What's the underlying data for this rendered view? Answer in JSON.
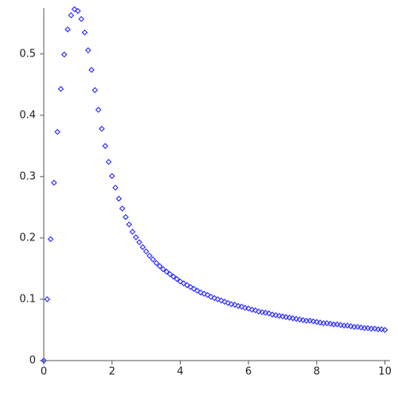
{
  "chart_data": {
    "type": "scatter",
    "x": [
      0,
      0.1,
      0.2,
      0.3,
      0.4,
      0.5,
      0.6,
      0.7,
      0.8,
      0.9,
      1,
      1.1,
      1.2,
      1.3,
      1.4,
      1.5,
      1.6,
      1.7,
      1.8,
      1.9,
      2,
      2.1,
      2.2,
      2.3,
      2.4,
      2.5,
      2.6,
      2.7,
      2.8,
      2.9,
      3,
      3.1,
      3.2,
      3.3,
      3.4,
      3.5,
      3.6,
      3.7,
      3.8,
      3.9,
      4,
      4.1,
      4.2,
      4.3,
      4.4,
      4.5,
      4.6,
      4.7,
      4.8,
      4.9,
      5,
      5.1,
      5.2,
      5.3,
      5.4,
      5.5,
      5.6,
      5.7,
      5.8,
      5.9,
      6,
      6.1,
      6.2,
      6.3,
      6.4,
      6.5,
      6.6,
      6.7,
      6.8,
      6.9,
      7,
      7.1,
      7.2,
      7.3,
      7.4,
      7.5,
      7.6,
      7.7,
      7.8,
      7.9,
      8,
      8.1,
      8.2,
      8.3,
      8.4,
      8.5,
      8.6,
      8.7,
      8.8,
      8.9,
      9,
      9.1,
      9.2,
      9.3,
      9.4,
      9.5,
      9.6,
      9.7,
      9.8,
      9.9,
      10
    ],
    "values": [
      0,
      0.1,
      0.198,
      0.29,
      0.373,
      0.443,
      0.499,
      0.54,
      0.563,
      0.573,
      0.57,
      0.557,
      0.535,
      0.506,
      0.474,
      0.441,
      0.409,
      0.378,
      0.35,
      0.324,
      0.301,
      0.282,
      0.264,
      0.248,
      0.234,
      0.222,
      0.21,
      0.201,
      0.193,
      0.185,
      0.178,
      0.171,
      0.165,
      0.159,
      0.154,
      0.149,
      0.145,
      0.141,
      0.137,
      0.133,
      0.129,
      0.126,
      0.123,
      0.12,
      0.117,
      0.114,
      0.111,
      0.109,
      0.107,
      0.104,
      0.102,
      0.1,
      0.098,
      0.096,
      0.094,
      0.092,
      0.091,
      0.089,
      0.088,
      0.086,
      0.085,
      0.083,
      0.082,
      0.08,
      0.079,
      0.078,
      0.077,
      0.075,
      0.074,
      0.073,
      0.072,
      0.071,
      0.07,
      0.069,
      0.068,
      0.067,
      0.066,
      0.065,
      0.065,
      0.064,
      0.063,
      0.062,
      0.061,
      0.061,
      0.06,
      0.059,
      0.059,
      0.058,
      0.057,
      0.057,
      0.056,
      0.055,
      0.055,
      0.054,
      0.053,
      0.053,
      0.052,
      0.052,
      0.051,
      0.051,
      0.05
    ],
    "color": "#3535ff",
    "xlim": [
      0,
      10.15
    ],
    "ylim": [
      0,
      0.575
    ],
    "xticks": [
      0,
      2,
      4,
      6,
      8,
      10
    ],
    "yticks": [
      0,
      0.1,
      0.2,
      0.3,
      0.4,
      0.5
    ]
  }
}
